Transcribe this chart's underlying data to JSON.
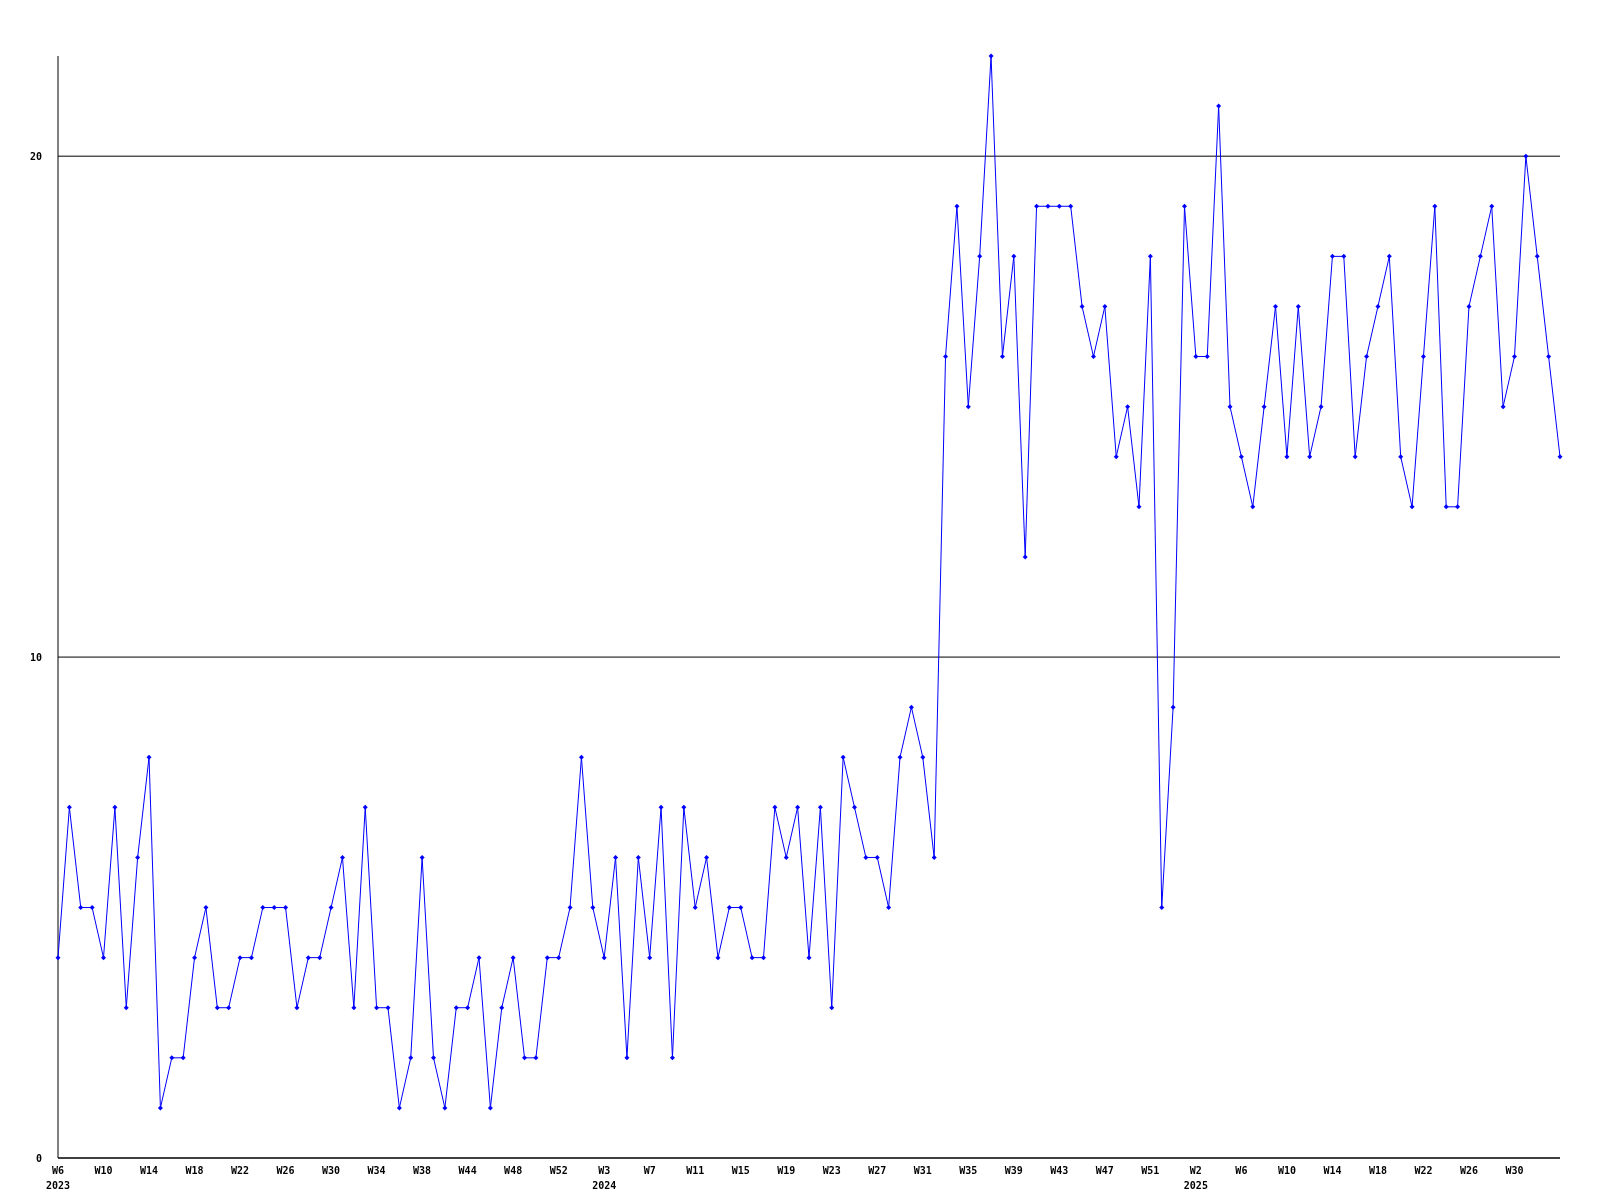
{
  "chart_data": {
    "type": "line",
    "categories": [
      "W6\n2023",
      null,
      null,
      null,
      "W10",
      null,
      null,
      null,
      "W14",
      null,
      null,
      null,
      "W18",
      null,
      null,
      null,
      "W22",
      null,
      null,
      null,
      "W26",
      null,
      null,
      null,
      "W30",
      null,
      null,
      null,
      "W34",
      null,
      null,
      null,
      "W38",
      null,
      null,
      null,
      "W44",
      null,
      null,
      null,
      "W48",
      null,
      null,
      null,
      "W52",
      null,
      null,
      null,
      "W3\n2024",
      null,
      null,
      null,
      "W7",
      null,
      null,
      null,
      "W11",
      null,
      null,
      null,
      "W15",
      null,
      null,
      null,
      "W19",
      null,
      null,
      null,
      "W23",
      null,
      null,
      null,
      "W27",
      null,
      null,
      null,
      "W31",
      null,
      null,
      null,
      "W35",
      null,
      null,
      null,
      "W39",
      null,
      null,
      null,
      "W43",
      null,
      null,
      null,
      "W47",
      null,
      null,
      null,
      "W51",
      null,
      null,
      null,
      "W2\n2025",
      null,
      null,
      null,
      "W6",
      null,
      null,
      null,
      "W10",
      null,
      null,
      null,
      "W14",
      null,
      null,
      null,
      "W18",
      null,
      null,
      null,
      "W22",
      null,
      null,
      null,
      "W26",
      null,
      null,
      null,
      "W30",
      null,
      null,
      null,
      null
    ],
    "series": [
      {
        "color": "#0000ff",
        "values": [
          4,
          7,
          5,
          5,
          4,
          7,
          3,
          6,
          8,
          1,
          2,
          2,
          4,
          5,
          3,
          3,
          4,
          4,
          5,
          5,
          5,
          3,
          4,
          4,
          5,
          6,
          3,
          7,
          3,
          3,
          1,
          2,
          6,
          2,
          1,
          3,
          3,
          4,
          1,
          3,
          4,
          2,
          2,
          4,
          4,
          5,
          8,
          5,
          4,
          6,
          2,
          6,
          4,
          7,
          2,
          7,
          5,
          6,
          4,
          5,
          5,
          4,
          4,
          7,
          6,
          7,
          4,
          7,
          3,
          8,
          7,
          6,
          6,
          5,
          8,
          9,
          8,
          6,
          16,
          19,
          15,
          18,
          22,
          16,
          18,
          12,
          19,
          19,
          19,
          19,
          17,
          16,
          17,
          14,
          15,
          13,
          18,
          5,
          9,
          19,
          16,
          16,
          21,
          15,
          14,
          13,
          15,
          17,
          14,
          17,
          14,
          15,
          18,
          18,
          14,
          16,
          17,
          18,
          14,
          13,
          16,
          19,
          13,
          13,
          17,
          18,
          19,
          15,
          16,
          20,
          18,
          16,
          14
        ]
      }
    ],
    "ylim": [
      0,
      22
    ],
    "yticks": [
      0,
      10,
      20
    ],
    "grid": "y",
    "marker": "diamond",
    "line_style": "solid"
  }
}
